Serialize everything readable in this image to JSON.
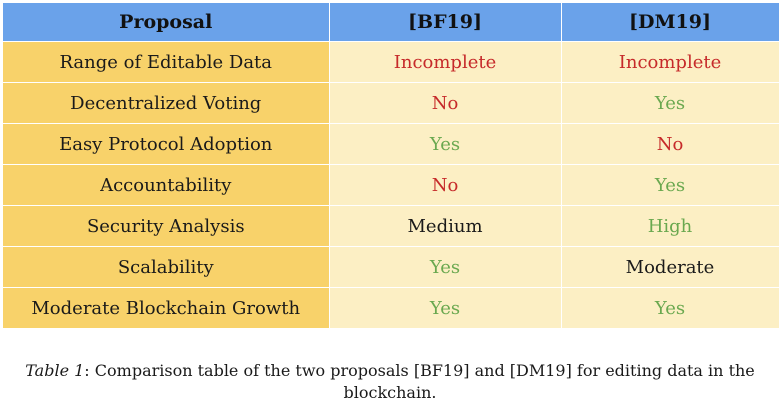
{
  "table": {
    "headers": [
      "Proposal",
      "[BF19]",
      "[DM19]"
    ],
    "rows": [
      {
        "label": "Range of Editable Data",
        "bf19": "Incomplete",
        "dm19": "Incomplete",
        "bf19_status": "bad",
        "dm19_status": "bad"
      },
      {
        "label": "Decentralized Voting",
        "bf19": "No",
        "dm19": "Yes",
        "bf19_status": "bad",
        "dm19_status": "good"
      },
      {
        "label": "Easy Protocol Adoption",
        "bf19": "Yes",
        "dm19": "No",
        "bf19_status": "good",
        "dm19_status": "bad"
      },
      {
        "label": "Accountability",
        "bf19": "No",
        "dm19": "Yes",
        "bf19_status": "bad",
        "dm19_status": "good"
      },
      {
        "label": "Security Analysis",
        "bf19": "Medium",
        "dm19": "High",
        "bf19_status": "neutral",
        "dm19_status": "good"
      },
      {
        "label": "Scalability",
        "bf19": "Yes",
        "dm19": "Moderate",
        "bf19_status": "good",
        "dm19_status": "neutral"
      },
      {
        "label": "Moderate Blockchain Growth",
        "bf19": "Yes",
        "dm19": "Yes",
        "bf19_status": "good",
        "dm19_status": "good"
      }
    ]
  },
  "caption": {
    "label": "Table 1",
    "text": ": Comparison table of the two proposals [BF19] and [DM19] for editing data in the",
    "text_line2": "blockchain."
  },
  "colors": {
    "header_bg": "#6aa2ea",
    "label_bg": "#f8d26a",
    "value_bg": "#fcefc4",
    "bad": "#c62a2a",
    "good": "#6aa84f",
    "neutral": "#1a1a1a"
  }
}
